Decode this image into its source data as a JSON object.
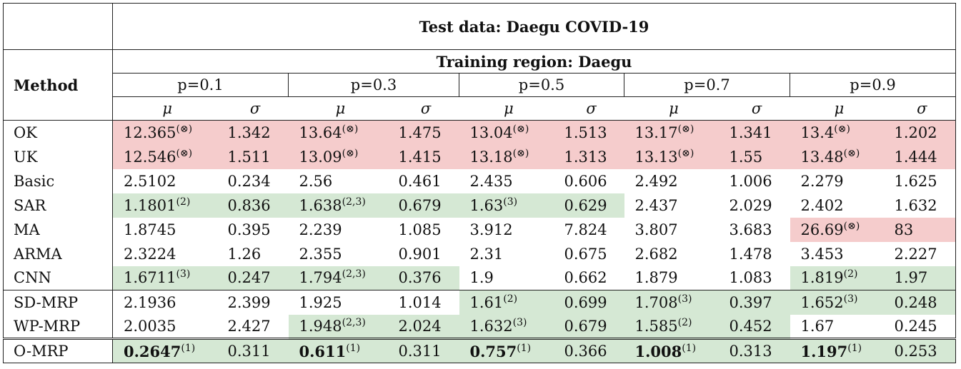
{
  "title": "Test data: Daegu COVID-19",
  "training_region": "Training region: Daegu",
  "method_header": "Method",
  "p_values": [
    "p=0.1",
    "p=0.3",
    "p=0.5",
    "p=0.7",
    "p=0.9"
  ],
  "mu_symbol": "μ",
  "sigma_symbol": "σ",
  "rows": [
    {
      "method": "OK",
      "cells": [
        {
          "v": "12.365",
          "sup": "(⊗)",
          "bg": "red"
        },
        {
          "v": "1.342",
          "bg": "red"
        },
        {
          "v": "13.64",
          "sup": "(⊗)",
          "bg": "red"
        },
        {
          "v": "1.475",
          "bg": "red"
        },
        {
          "v": "13.04",
          "sup": "(⊗)",
          "bg": "red"
        },
        {
          "v": "1.513",
          "bg": "red"
        },
        {
          "v": "13.17",
          "sup": "(⊗)",
          "bg": "red"
        },
        {
          "v": "1.341",
          "bg": "red"
        },
        {
          "v": "13.4",
          "sup": "(⊗)",
          "bg": "red"
        },
        {
          "v": "1.202",
          "bg": "red"
        }
      ]
    },
    {
      "method": "UK",
      "cells": [
        {
          "v": "12.546",
          "sup": "(⊗)",
          "bg": "red"
        },
        {
          "v": "1.511",
          "bg": "red"
        },
        {
          "v": "13.09",
          "sup": "(⊗)",
          "bg": "red"
        },
        {
          "v": "1.415",
          "bg": "red"
        },
        {
          "v": "13.18",
          "sup": "(⊗)",
          "bg": "red"
        },
        {
          "v": "1.313",
          "bg": "red"
        },
        {
          "v": "13.13",
          "sup": "(⊗)",
          "bg": "red"
        },
        {
          "v": "1.55",
          "bg": "red"
        },
        {
          "v": "13.48",
          "sup": "(⊗)",
          "bg": "red"
        },
        {
          "v": "1.444",
          "bg": "red"
        }
      ]
    },
    {
      "method": "Basic",
      "cells": [
        {
          "v": "2.5102"
        },
        {
          "v": "0.234"
        },
        {
          "v": "2.56"
        },
        {
          "v": "0.461"
        },
        {
          "v": "2.435"
        },
        {
          "v": "0.606"
        },
        {
          "v": "2.492"
        },
        {
          "v": "1.006"
        },
        {
          "v": "2.279"
        },
        {
          "v": "1.625"
        }
      ]
    },
    {
      "method": "SAR",
      "cells": [
        {
          "v": "1.1801",
          "sup": "(2)",
          "bg": "green"
        },
        {
          "v": "0.836",
          "bg": "green"
        },
        {
          "v": "1.638",
          "sup": "(2,3)",
          "bg": "green"
        },
        {
          "v": "0.679",
          "bg": "green"
        },
        {
          "v": "1.63",
          "sup": "(3)",
          "bg": "green"
        },
        {
          "v": "0.629",
          "bg": "green"
        },
        {
          "v": "2.437"
        },
        {
          "v": "2.029"
        },
        {
          "v": "2.402"
        },
        {
          "v": "1.632"
        }
      ]
    },
    {
      "method": "MA",
      "cells": [
        {
          "v": "1.8745"
        },
        {
          "v": "0.395"
        },
        {
          "v": "2.239"
        },
        {
          "v": "1.085"
        },
        {
          "v": "3.912"
        },
        {
          "v": "7.824"
        },
        {
          "v": "3.807"
        },
        {
          "v": "3.683"
        },
        {
          "v": "26.69",
          "sup": "(⊗)",
          "bg": "red"
        },
        {
          "v": "83",
          "bg": "red"
        }
      ]
    },
    {
      "method": "ARMA",
      "cells": [
        {
          "v": "2.3224"
        },
        {
          "v": "1.26"
        },
        {
          "v": "2.355"
        },
        {
          "v": "0.901"
        },
        {
          "v": "2.31"
        },
        {
          "v": "0.675"
        },
        {
          "v": "2.682"
        },
        {
          "v": "1.478"
        },
        {
          "v": "3.453"
        },
        {
          "v": "2.227"
        }
      ]
    },
    {
      "method": "CNN",
      "cells": [
        {
          "v": "1.6711",
          "sup": "(3)",
          "bg": "green"
        },
        {
          "v": "0.247",
          "bg": "green"
        },
        {
          "v": "1.794",
          "sup": "(2,3)",
          "bg": "green"
        },
        {
          "v": "0.376",
          "bg": "green"
        },
        {
          "v": "1.9"
        },
        {
          "v": "0.662"
        },
        {
          "v": "1.879"
        },
        {
          "v": "1.083"
        },
        {
          "v": "1.819",
          "sup": "(2)",
          "bg": "green"
        },
        {
          "v": "1.97",
          "bg": "green"
        }
      ]
    },
    {
      "method": "SD-MRP",
      "sep": "single",
      "cells": [
        {
          "v": "2.1936"
        },
        {
          "v": "2.399"
        },
        {
          "v": "1.925"
        },
        {
          "v": "1.014"
        },
        {
          "v": "1.61",
          "sup": "(2)",
          "bg": "green"
        },
        {
          "v": "0.699",
          "bg": "green"
        },
        {
          "v": "1.708",
          "sup": "(3)",
          "bg": "green"
        },
        {
          "v": "0.397",
          "bg": "green"
        },
        {
          "v": "1.652",
          "sup": "(3)",
          "bg": "green"
        },
        {
          "v": "0.248",
          "bg": "green"
        }
      ]
    },
    {
      "method": "WP-MRP",
      "cells": [
        {
          "v": "2.0035"
        },
        {
          "v": "2.427"
        },
        {
          "v": "1.948",
          "sup": "(2,3)",
          "bg": "green"
        },
        {
          "v": "2.024",
          "bg": "green"
        },
        {
          "v": "1.632",
          "sup": "(3)",
          "bg": "green"
        },
        {
          "v": "0.679",
          "bg": "green"
        },
        {
          "v": "1.585",
          "sup": "(2)",
          "bg": "green"
        },
        {
          "v": "0.452",
          "bg": "green"
        },
        {
          "v": "1.67"
        },
        {
          "v": "0.245"
        }
      ]
    },
    {
      "method": "O-MRP",
      "sep": "double",
      "cells": [
        {
          "v": "0.2647",
          "sup": "(1)",
          "bg": "green",
          "bold": true
        },
        {
          "v": "0.311",
          "bg": "green"
        },
        {
          "v": "0.611",
          "sup": "(1)",
          "bg": "green",
          "bold": true
        },
        {
          "v": "0.311",
          "bg": "green"
        },
        {
          "v": "0.757",
          "sup": "(1)",
          "bg": "green",
          "bold": true
        },
        {
          "v": "0.366",
          "bg": "green"
        },
        {
          "v": "1.008",
          "sup": "(1)",
          "bg": "green",
          "bold": true
        },
        {
          "v": "0.313",
          "bg": "green"
        },
        {
          "v": "1.197",
          "sup": "(1)",
          "bg": "green",
          "bold": true
        },
        {
          "v": "0.253",
          "bg": "green"
        }
      ]
    }
  ]
}
